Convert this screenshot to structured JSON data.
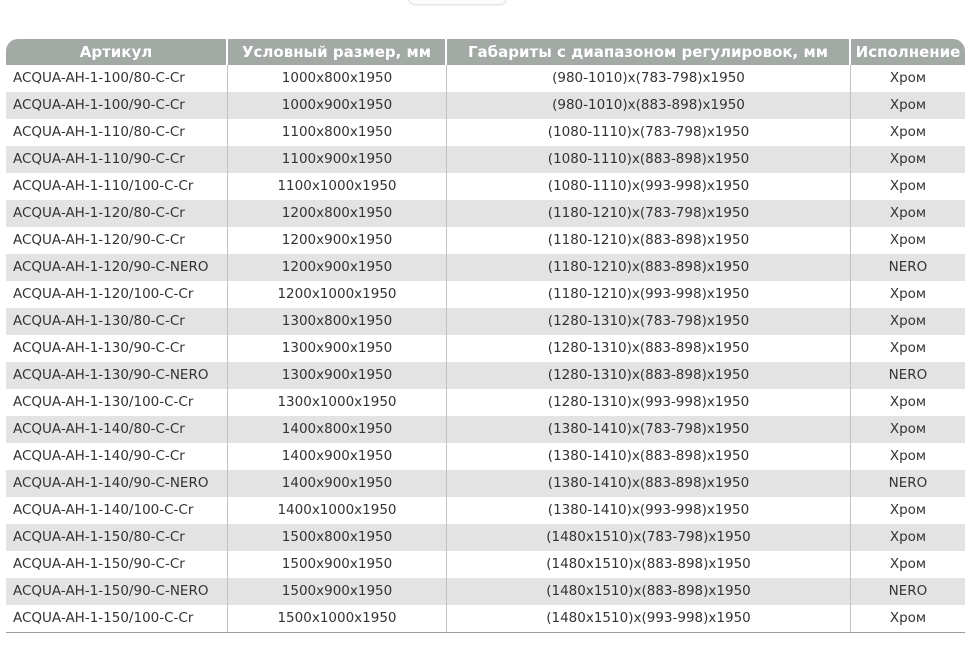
{
  "page": {
    "background_color": "#ffffff",
    "partial_top_button_label": ""
  },
  "table": {
    "columns": [
      "Артикул",
      "Условный размер, мм",
      "Габариты с диапазоном регулировок, мм",
      "Исполнение"
    ],
    "column_keys": [
      "article",
      "nominal-size",
      "adjustment-range",
      "finish"
    ],
    "rows": [
      [
        "ACQUA-AH-1-100/80-C-Cr",
        "1000x800x1950",
        "(980-1010)x(783-798)x1950",
        "Хром"
      ],
      [
        "ACQUA-AH-1-100/90-C-Cr",
        "1000x900x1950",
        "(980-1010)x(883-898)x1950",
        "Хром"
      ],
      [
        "ACQUA-AH-1-110/80-C-Cr",
        "1100x800x1950",
        "(1080-1110)x(783-798)x1950",
        "Хром"
      ],
      [
        "ACQUA-AH-1-110/90-C-Cr",
        "1100x900x1950",
        "(1080-1110)x(883-898)x1950",
        "Хром"
      ],
      [
        "ACQUA-AH-1-110/100-C-Cr",
        "1100x1000x1950",
        "(1080-1110)x(993-998)x1950",
        "Хром"
      ],
      [
        "ACQUA-AH-1-120/80-C-Cr",
        "1200x800x1950",
        "(1180-1210)x(783-798)x1950",
        "Хром"
      ],
      [
        "ACQUA-AH-1-120/90-C-Cr",
        "1200x900x1950",
        "(1180-1210)x(883-898)x1950",
        "Хром"
      ],
      [
        "ACQUA-AH-1-120/90-C-NERO",
        "1200x900x1950",
        "(1180-1210)x(883-898)x1950",
        "NERO"
      ],
      [
        "ACQUA-AH-1-120/100-C-Cr",
        "1200x1000x1950",
        "(1180-1210)x(993-998)x1950",
        "Хром"
      ],
      [
        "ACQUA-AH-1-130/80-C-Cr",
        "1300x800x1950",
        "(1280-1310)x(783-798)x1950",
        "Хром"
      ],
      [
        "ACQUA-AH-1-130/90-C-Cr",
        "1300x900x1950",
        "(1280-1310)x(883-898)x1950",
        "Хром"
      ],
      [
        "ACQUA-AH-1-130/90-C-NERO",
        "1300x900x1950",
        "(1280-1310)x(883-898)x1950",
        "NERO"
      ],
      [
        "ACQUA-AH-1-130/100-C-Cr",
        "1300x1000x1950",
        "(1280-1310)x(993-998)x1950",
        "Хром"
      ],
      [
        "ACQUA-AH-1-140/80-C-Cr",
        "1400x800x1950",
        "(1380-1410)x(783-798)x1950",
        "Хром"
      ],
      [
        "ACQUA-AH-1-140/90-C-Cr",
        "1400x900x1950",
        "(1380-1410)x(883-898)x1950",
        "Хром"
      ],
      [
        "ACQUA-AH-1-140/90-C-NERO",
        "1400x900x1950",
        "(1380-1410)x(883-898)x1950",
        "NERO"
      ],
      [
        "ACQUA-AH-1-140/100-C-Cr",
        "1400x1000x1950",
        "(1380-1410)x(993-998)x1950",
        "Хром"
      ],
      [
        "ACQUA-AH-1-150/80-C-Cr",
        "1500x800x1950",
        "(1480x1510)x(783-798)x1950",
        "Хром"
      ],
      [
        "ACQUA-AH-1-150/90-C-Cr",
        "1500x900x1950",
        "(1480x1510)x(883-898)x1950",
        "Хром"
      ],
      [
        "ACQUA-AH-1-150/90-C-NERO",
        "1500x900x1950",
        "(1480x1510)x(883-898)x1950",
        "NERO"
      ],
      [
        "ACQUA-AH-1-150/100-C-Cr",
        "1500x1000x1950",
        "(1480x1510)x(993-998)x1950",
        "Хром"
      ]
    ],
    "colors": {
      "header_background": "#a3a9a4",
      "header_text": "#ffffff",
      "row_background": "#ffffff",
      "row_alt_background": "#e3e3e3",
      "cell_text": "#333333",
      "header_separator": "#ffffff",
      "body_separator": "#c3c3c3",
      "bottom_border": "#9e9e9e"
    }
  }
}
